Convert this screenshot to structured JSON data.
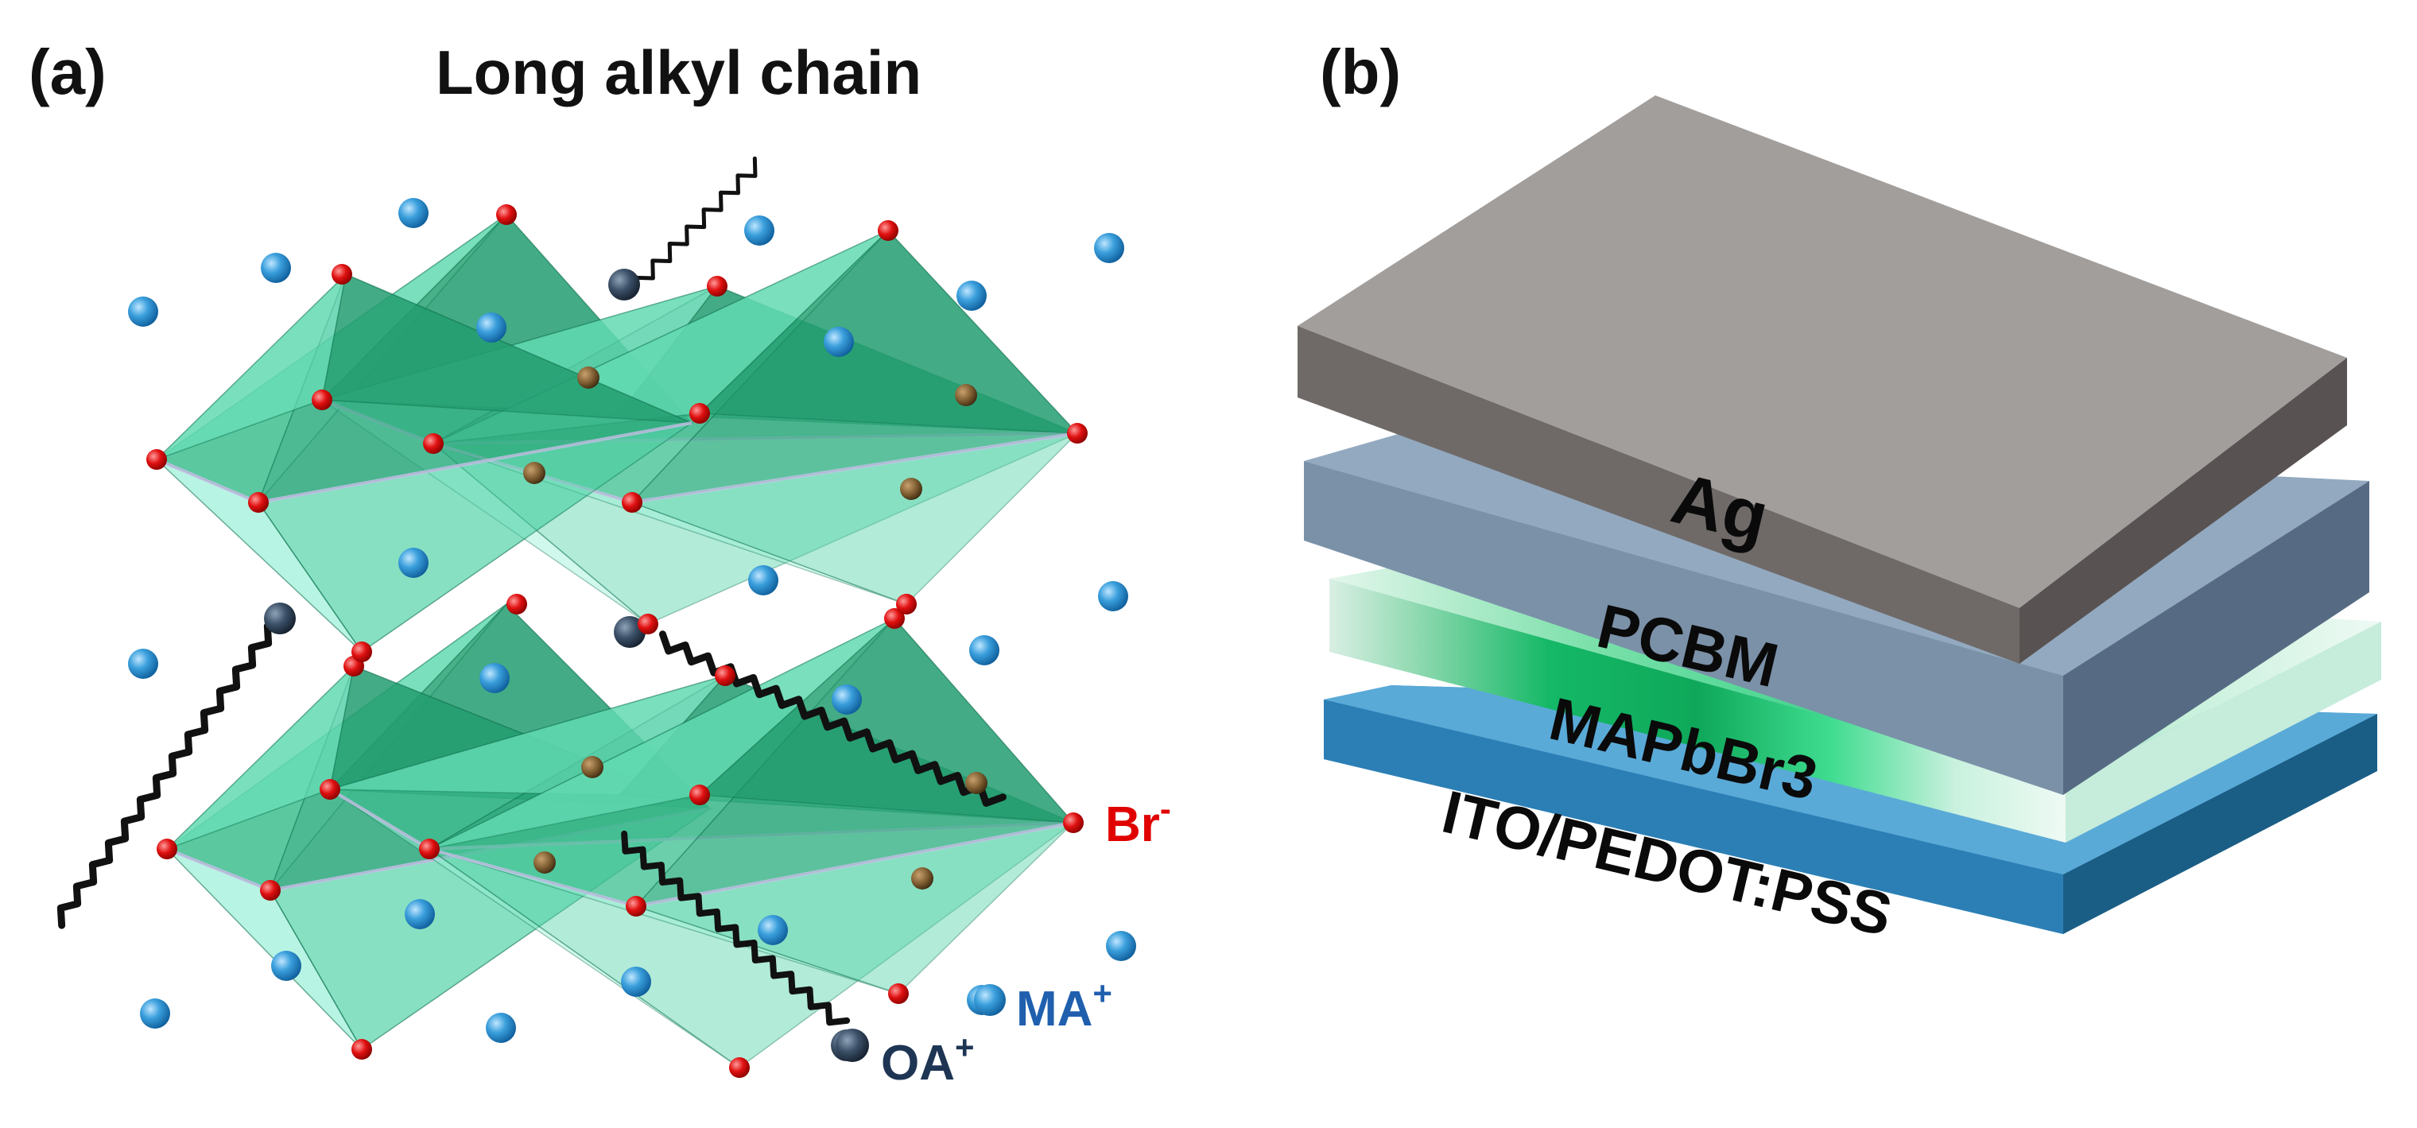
{
  "panel_a": {
    "label": "(a)",
    "title": "Long alkyl chain",
    "legend": {
      "br": {
        "ion": "Br",
        "charge": "-",
        "color": "#e00000"
      },
      "ma": {
        "ion": "MA",
        "charge": "+",
        "color": "#1f5fae"
      },
      "oa": {
        "ion": "OA",
        "charge": "+",
        "color": "#1e3554"
      }
    }
  },
  "panel_b": {
    "label": "(b)",
    "layers": [
      {
        "name": "Ag",
        "color": "#8a8583"
      },
      {
        "name": "PCBM",
        "color": "#7a8ea4"
      },
      {
        "name": "MAPbBr3",
        "color": "#1fd080"
      },
      {
        "name": "ITO/PEDOT:PSS",
        "color": "#2a7fb4"
      }
    ]
  }
}
